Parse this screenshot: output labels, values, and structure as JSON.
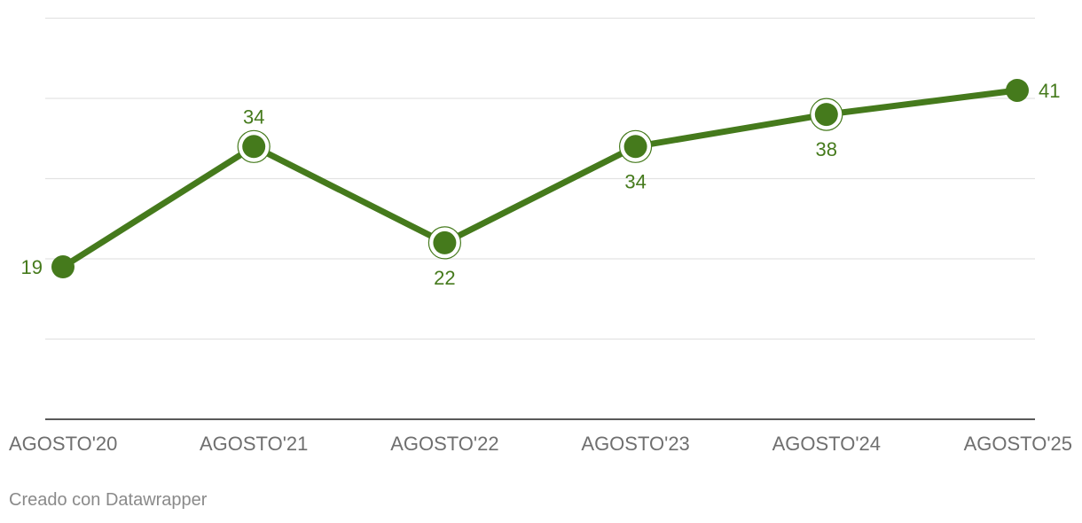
{
  "chart_data": {
    "type": "line",
    "categories": [
      "AGOSTO'20",
      "AGOSTO'21",
      "AGOSTO'22",
      "AGOSTO'23",
      "AGOSTO'24",
      "AGOSTO'25"
    ],
    "series": [
      {
        "values": [
          19,
          34,
          22,
          34,
          38,
          41
        ],
        "color": "#457a1c"
      }
    ],
    "ylim": [
      0,
      50
    ],
    "grid": true,
    "gridline_values": [
      10,
      20,
      30,
      40,
      50
    ]
  },
  "footer": {
    "credit": "Creado con Datawrapper"
  }
}
